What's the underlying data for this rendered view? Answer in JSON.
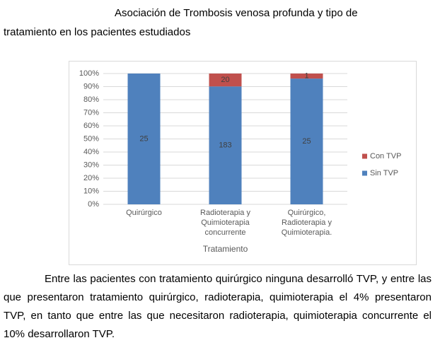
{
  "title": "Asociación de Trombosis venosa profunda y tipo de tratamiento en los pacientes estudiados",
  "chart_data": {
    "type": "bar",
    "stacking": "percent",
    "categories": [
      "Quirúrgico",
      "Radioterapia y Quimioterapia concurrente",
      "Quirúrgico, Radioterapia y Quimioterapia."
    ],
    "series": [
      {
        "name": "Sin TVP",
        "color": "#4f81bd",
        "values": [
          25,
          183,
          25
        ]
      },
      {
        "name": "Con TVP",
        "color": "#c0504d",
        "values": [
          0,
          20,
          1
        ]
      }
    ],
    "ylim": [
      0,
      100
    ],
    "yticks": [
      {
        "value": 0,
        "label": "0%"
      },
      {
        "value": 10,
        "label": "10%"
      },
      {
        "value": 20,
        "label": "20%"
      },
      {
        "value": 30,
        "label": "30%"
      },
      {
        "value": 40,
        "label": "40%"
      },
      {
        "value": 50,
        "label": "50%"
      },
      {
        "value": 60,
        "label": "60%"
      },
      {
        "value": 70,
        "label": "70%"
      },
      {
        "value": 80,
        "label": "80%"
      },
      {
        "value": 90,
        "label": "90%"
      },
      {
        "value": 100,
        "label": "100%"
      }
    ],
    "xlabel": "Tratamiento",
    "grid": true,
    "legend": "right"
  },
  "paragraph": "Entre las pacientes con tratamiento quirúrgico ninguna desarrolló TVP, y entre las que presentaron tratamiento quirúrgico, radioterapia, quimioterapia el 4% presentaron TVP, en tanto que entre las que necesitaron radioterapia, quimioterapia concurrente el 10% desarrollaron TVP."
}
